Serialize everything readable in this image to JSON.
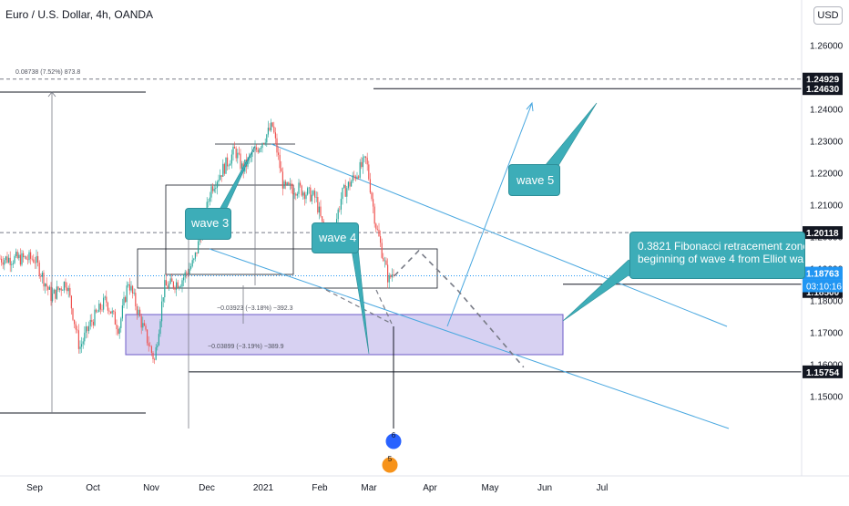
{
  "symbol_title": "Euro / U.S. Dollar, 4h, OANDA",
  "currency_button": "USD",
  "colors": {
    "bull": "#26a69a",
    "bear": "#ef5350",
    "callout": "#3dadb8",
    "channel": "#4aa8e0",
    "zone_fill": "#c9c1ee",
    "zone_border": "#6e5bc8",
    "dark_badge": "#131722",
    "price_badge": "#2196f3",
    "current_line": "#2196f3"
  },
  "chart_data": {
    "type": "candlestick",
    "title": "Euro / U.S. Dollar, 4h, OANDA",
    "y_axis_ticks": [
      "1.26000",
      "1.25000",
      "1.24000",
      "1.23000",
      "1.22000",
      "1.21000",
      "1.20000",
      "1.19000",
      "1.18000",
      "1.17000",
      "1.16000",
      "1.15000"
    ],
    "ylim": [
      1.1445,
      1.2695
    ],
    "x_axis_ticks": [
      "Sep",
      "Oct",
      "Nov",
      "Dec",
      "2021",
      "Feb",
      "Mar",
      "Apr",
      "May",
      "Jun",
      "Jul"
    ],
    "price_path": [
      [
        "2020-09-01",
        1.193
      ],
      [
        "2020-09-10",
        1.181
      ],
      [
        "2020-09-18",
        1.186
      ],
      [
        "2020-09-25",
        1.165
      ],
      [
        "2020-10-01",
        1.173
      ],
      [
        "2020-10-09",
        1.18
      ],
      [
        "2020-10-16",
        1.171
      ],
      [
        "2020-10-21",
        1.186
      ],
      [
        "2020-10-28",
        1.173
      ],
      [
        "2020-11-04",
        1.161
      ],
      [
        "2020-11-09",
        1.184
      ],
      [
        "2020-11-18",
        1.186
      ],
      [
        "2020-11-25",
        1.192
      ],
      [
        "2020-12-01",
        1.206
      ],
      [
        "2020-12-04",
        1.215
      ],
      [
        "2020-12-17",
        1.227
      ],
      [
        "2020-12-21",
        1.221
      ],
      [
        "2021-01-06",
        1.2345
      ],
      [
        "2021-01-12",
        1.215
      ],
      [
        "2021-01-20",
        1.215
      ],
      [
        "2021-01-29",
        1.212
      ],
      [
        "2021-02-05",
        1.195
      ],
      [
        "2021-02-12",
        1.213
      ],
      [
        "2021-02-25",
        1.224
      ],
      [
        "2021-03-02",
        1.204
      ],
      [
        "2021-03-09",
        1.186
      ],
      [
        "2021-03-12",
        1.19
      ]
    ],
    "projection_path": [
      [
        "2021-03-12",
        1.1876
      ],
      [
        "2021-03-25",
        1.1955
      ],
      [
        "2021-04-15",
        1.183
      ],
      [
        "2021-05-20",
        1.159
      ]
    ],
    "horizontal_levels": [
      1.24929,
      1.2463,
      1.20118,
      1.185,
      1.15754
    ],
    "current_price": "1.18763",
    "countdown": "03:10:16",
    "price_labels": [
      "1.24929",
      "1.24630",
      "1.20118",
      "1.18763",
      "1.18500",
      "1.15754"
    ],
    "measure_labels": [
      "0.08738 (7.52%) 873.8",
      "−0.03923 (−3.18%) −392.3",
      "−0.03899 (−3.19%) −389.9"
    ],
    "annotations": [
      {
        "text": "wave 3"
      },
      {
        "text": "wave 4"
      },
      {
        "text": "wave 5"
      },
      {
        "text": "0.3821 Fibonacci retracement zone\nbeginning of wave 4 from Elliot wa"
      }
    ],
    "event_markers": [
      "6",
      "5"
    ]
  }
}
